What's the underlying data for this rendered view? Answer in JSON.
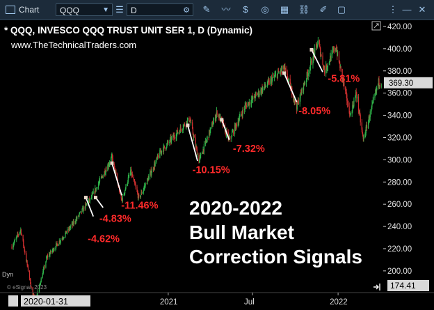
{
  "toolbar": {
    "app_label": "Chart",
    "symbol": "QQQ",
    "interval": "D"
  },
  "chart_data": {
    "type": "candlestick",
    "title": "* QQQ, INVESCO QQQ TRUST UNIT SER 1, D (Dynamic)",
    "subtitle": "www.TheTechnicalTraders.com",
    "headline": [
      "2020-2022",
      "Bull Market",
      "Correction Signals"
    ],
    "watermark": "© eSignal, 2023",
    "bottom_left_label": "Dyn",
    "x_ticks": [
      {
        "label": "2020-01-31",
        "date": "2020-01-31",
        "highlighted": true
      },
      {
        "label": "2021",
        "date": "2021-01-01"
      },
      {
        "label": "Jul",
        "date": "2021-07-01"
      },
      {
        "label": "2022",
        "date": "2022-01-01"
      }
    ],
    "y_ticks": [
      200,
      220,
      240,
      260,
      280,
      300,
      320,
      340,
      360,
      380,
      400,
      420
    ],
    "y_tick_labels": [
      "200.00",
      "220.00",
      "240.00",
      "260.00",
      "280.00",
      "300.00",
      "320.00",
      "340.00",
      "360.00",
      "380.00",
      "400.00",
      "420.00"
    ],
    "ylim": [
      188,
      425
    ],
    "current_price_label": "369.30",
    "current_price": 369.3,
    "bottom_price_label": "174.41",
    "grid": false,
    "price_path": [
      [
        "2020-01-31",
        222
      ],
      [
        "2020-02-19",
        237
      ],
      [
        "2020-03-16",
        178
      ],
      [
        "2020-03-23",
        175
      ],
      [
        "2020-04-15",
        212
      ],
      [
        "2020-06-08",
        241
      ],
      [
        "2020-07-20",
        266
      ],
      [
        "2020-09-02",
        302
      ],
      [
        "2020-09-23",
        263
      ],
      [
        "2020-10-12",
        290
      ],
      [
        "2020-10-30",
        265
      ],
      [
        "2020-12-15",
        307
      ],
      [
        "2021-02-16",
        337
      ],
      [
        "2021-03-08",
        299
      ],
      [
        "2021-04-16",
        343
      ],
      [
        "2021-05-12",
        318
      ],
      [
        "2021-06-15",
        348
      ],
      [
        "2021-09-07",
        383
      ],
      [
        "2021-10-04",
        348
      ],
      [
        "2021-11-19",
        406
      ],
      [
        "2021-12-03",
        380
      ],
      [
        "2021-12-27",
        402
      ],
      [
        "2022-01-27",
        340
      ],
      [
        "2022-02-09",
        360
      ],
      [
        "2022-02-24",
        318
      ],
      [
        "2022-03-29",
        370
      ],
      [
        "2022-04-04",
        369
      ]
    ],
    "corrections": [
      {
        "label": "-4.62%",
        "start": [
          "2020-07-08",
          266
        ],
        "end": [
          "2020-07-24",
          249
        ],
        "label_pos": [
          "2020-07-12",
          226
        ]
      },
      {
        "label": "-4.83%",
        "start": [
          "2020-07-29",
          266
        ],
        "end": [
          "2020-08-14",
          257
        ],
        "label_pos": [
          "2020-08-06",
          244
        ]
      },
      {
        "label": "-11.46%",
        "start": [
          "2020-09-02",
          297
        ],
        "end": [
          "2020-09-23",
          268
        ],
        "label_pos": [
          "2020-09-22",
          256
        ]
      },
      {
        "label": "-10.15%",
        "start": [
          "2021-02-12",
          331
        ],
        "end": [
          "2021-03-05",
          299
        ],
        "label_pos": [
          "2021-02-22",
          288
        ]
      },
      {
        "label": "-7.32%",
        "start": [
          "2021-04-26",
          336
        ],
        "end": [
          "2021-05-12",
          318
        ],
        "label_pos": [
          "2021-05-20",
          307
        ]
      },
      {
        "label": "-8.05%",
        "start": [
          "2021-09-07",
          378
        ],
        "end": [
          "2021-10-04",
          352
        ],
        "label_pos": [
          "2021-10-08",
          341
        ]
      },
      {
        "label": "-5.81%",
        "start": [
          "2021-11-05",
          399
        ],
        "end": [
          "2021-11-29",
          379
        ],
        "label_pos": [
          "2021-12-10",
          370
        ]
      }
    ]
  }
}
